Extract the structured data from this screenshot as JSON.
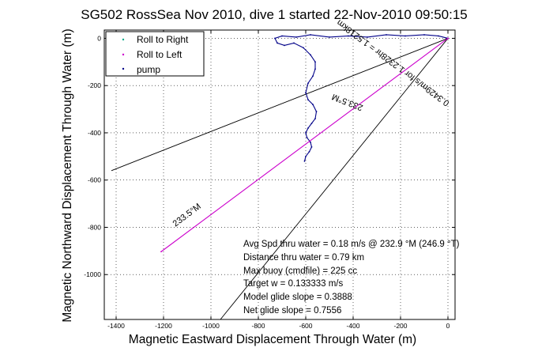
{
  "chart_data": {
    "type": "line",
    "title": "SG502 RossSea Nov 2010, dive 1 started 22-Nov-2010 09:50:15",
    "xlabel": "Magnetic Eastward Displacement Through Water (m)",
    "ylabel": "Magnetic Northward Displacement Through Water (m)",
    "xlim": [
      -1450,
      30
    ],
    "ylim": [
      -1190,
      35
    ],
    "xticks": [
      -1400,
      -1200,
      -1000,
      -800,
      -600,
      -400,
      -200,
      0
    ],
    "xtick_labels": [
      "-1400",
      "-1200",
      "-1000",
      "-800",
      "-600",
      "-400",
      "-200",
      "0"
    ],
    "yticks": [
      0,
      -200,
      -400,
      -600,
      -800,
      -1000
    ],
    "ytick_labels": [
      "0",
      "-200",
      "-400",
      "-600",
      "-800",
      "-1000"
    ],
    "grid": true,
    "legend": {
      "position": "top-left",
      "entries": [
        {
          "label": "Roll to Right",
          "color": "#00aa88",
          "marker": "dot"
        },
        {
          "label": "Roll to Left",
          "color": "#cc00cc",
          "marker": "dot"
        },
        {
          "label": "pump",
          "color": "#000088",
          "marker": "dot"
        }
      ]
    },
    "series": [
      {
        "color": "#000088",
        "x": [
          0,
          -40,
          -100,
          -180,
          -260,
          -340,
          -420,
          -500,
          -580,
          -640,
          -700,
          -730,
          -720,
          -690,
          -650,
          -610,
          -580,
          -560,
          -560,
          -570,
          -590,
          -600,
          -590,
          -570,
          -555,
          -560,
          -575,
          -590,
          -600,
          -595,
          -580,
          -575,
          -585,
          -600,
          -605
        ],
        "y": [
          0,
          10,
          15,
          10,
          15,
          5,
          10,
          5,
          15,
          5,
          10,
          0,
          -20,
          -30,
          -20,
          -40,
          -70,
          -100,
          -130,
          -160,
          -190,
          -230,
          -260,
          -280,
          -310,
          -340,
          -360,
          -380,
          -400,
          -420,
          -440,
          -460,
          -480,
          -500,
          -520
        ]
      },
      {
        "color": "#cc00cc",
        "x": [
          0,
          -1210
        ],
        "y": [
          0,
          -903
        ]
      }
    ],
    "reference_lines": [
      {
        "label": "233.5°M",
        "x": [
          0,
          -1420
        ],
        "y": [
          0,
          -560
        ],
        "color": "#000000"
      },
      {
        "label": "",
        "x": [
          0,
          -960
        ],
        "y": [
          0,
          -1200
        ],
        "color": "#000000"
      }
    ],
    "line_labels": [
      {
        "text": "233.5°M",
        "x": -420,
        "y": -260
      },
      {
        "text": "0.3429m/s for 1.2328hr = 1.5218km",
        "x": -225,
        "y": -95
      },
      {
        "text": "233.5°M",
        "x": -1095,
        "y": -757
      }
    ],
    "annotations": [
      "Avg Spd thru water =  0.18 m/s @ 232.9   °M (246.9 °T)",
      "Distance thru water =  0.79 km",
      "Max buoy (cmdfile) = 225 cc",
      "Target w = 0.133333 m/s",
      "Model glide slope = 0.3888",
      "Net glide slope = 0.7556"
    ]
  }
}
